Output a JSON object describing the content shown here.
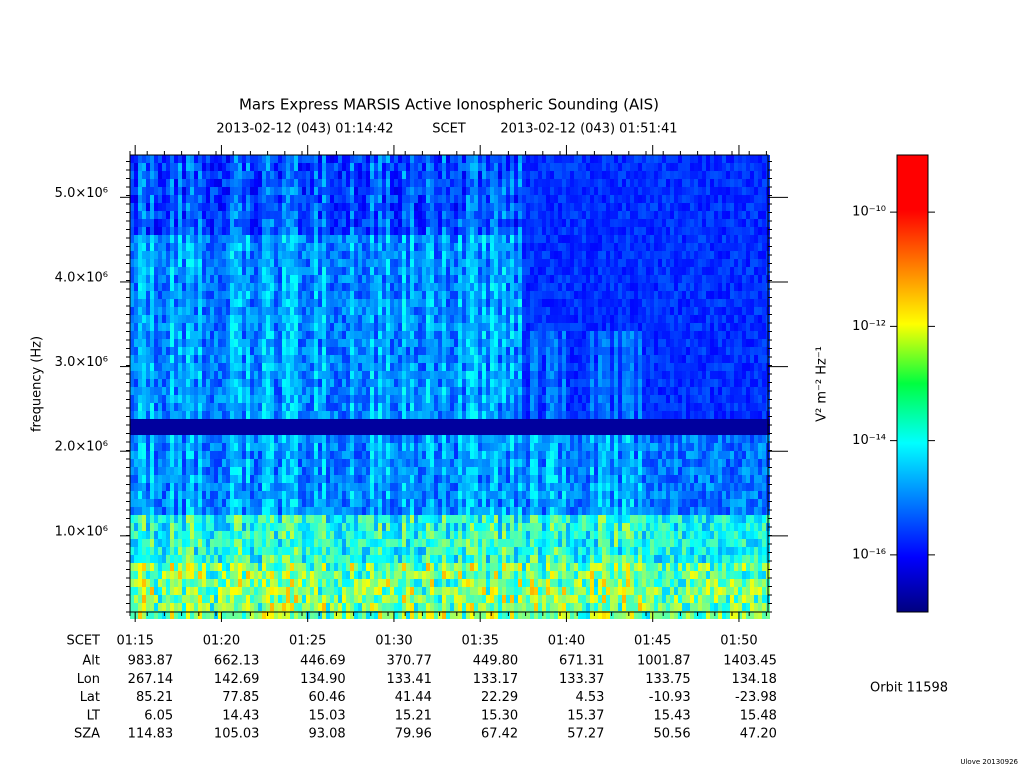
{
  "chart_data": {
    "type": "spectrogram",
    "title": "Mars Express MARSIS Active Ionospheric Sounding (AIS)",
    "start_time": "2013-02-12 (043) 01:14:42",
    "time_system": "SCET",
    "end_time": "2013-02-12 (043) 01:51:41",
    "ylabel": "frequency (Hz)",
    "xlim": [
      "2013-02-12T01:14:42",
      "2013-02-12T01:51:41"
    ],
    "xticks": [
      {
        "value": "2013-02-12T01:15:00",
        "label": "01:15"
      },
      {
        "value": "2013-02-12T01:20:00",
        "label": "01:20"
      },
      {
        "value": "2013-02-12T01:25:00",
        "label": "01:25"
      },
      {
        "value": "2013-02-12T01:30:00",
        "label": "01:30"
      },
      {
        "value": "2013-02-12T01:35:00",
        "label": "01:35"
      },
      {
        "value": "2013-02-12T01:40:00",
        "label": "01:40"
      },
      {
        "value": "2013-02-12T01:45:00",
        "label": "01:45"
      },
      {
        "value": "2013-02-12T01:50:00",
        "label": "01:50"
      }
    ],
    "ylim": [
      100000,
      5500000
    ],
    "yticks": [
      {
        "value": 1000000,
        "label": "1.0×10⁶"
      },
      {
        "value": 2000000,
        "label": "2.0×10⁶"
      },
      {
        "value": 3000000,
        "label": "3.0×10⁶"
      },
      {
        "value": 4000000,
        "label": "4.0×10⁶"
      },
      {
        "value": 5000000,
        "label": "5.0×10⁶"
      }
    ],
    "colorbar": {
      "label": "V² m⁻² Hz⁻¹",
      "log": true,
      "zlim": [
        1e-17,
        1e-09
      ],
      "ticks": [
        {
          "value": 1e-10,
          "label": "10⁻¹⁰"
        },
        {
          "value": 1e-12,
          "label": "10⁻¹²"
        },
        {
          "value": 1e-14,
          "label": "10⁻¹⁴"
        },
        {
          "value": 1e-16,
          "label": "10⁻¹⁶"
        }
      ]
    },
    "ephemeris": {
      "time_label": "SCET",
      "rows": [
        {
          "name": "Alt",
          "values": [
            "983.87",
            "662.13",
            "446.69",
            "370.77",
            "449.80",
            "671.31",
            "1001.87",
            "1403.45"
          ]
        },
        {
          "name": "Lon",
          "values": [
            "267.14",
            "142.69",
            "134.90",
            "133.41",
            "133.17",
            "133.37",
            "133.75",
            "134.18"
          ]
        },
        {
          "name": "Lat",
          "values": [
            "85.21",
            "77.85",
            "60.46",
            "41.44",
            "22.29",
            "4.53",
            "-10.93",
            "-23.98"
          ]
        },
        {
          "name": "LT",
          "values": [
            "6.05",
            "14.43",
            "15.03",
            "15.21",
            "15.30",
            "15.37",
            "15.43",
            "15.48"
          ]
        },
        {
          "name": "SZA",
          "values": [
            "114.83",
            "105.03",
            "93.08",
            "79.96",
            "67.42",
            "57.27",
            "50.56",
            "47.20"
          ]
        }
      ]
    },
    "orbit": "Orbit 11598",
    "footer": "Ulove 20130926"
  }
}
